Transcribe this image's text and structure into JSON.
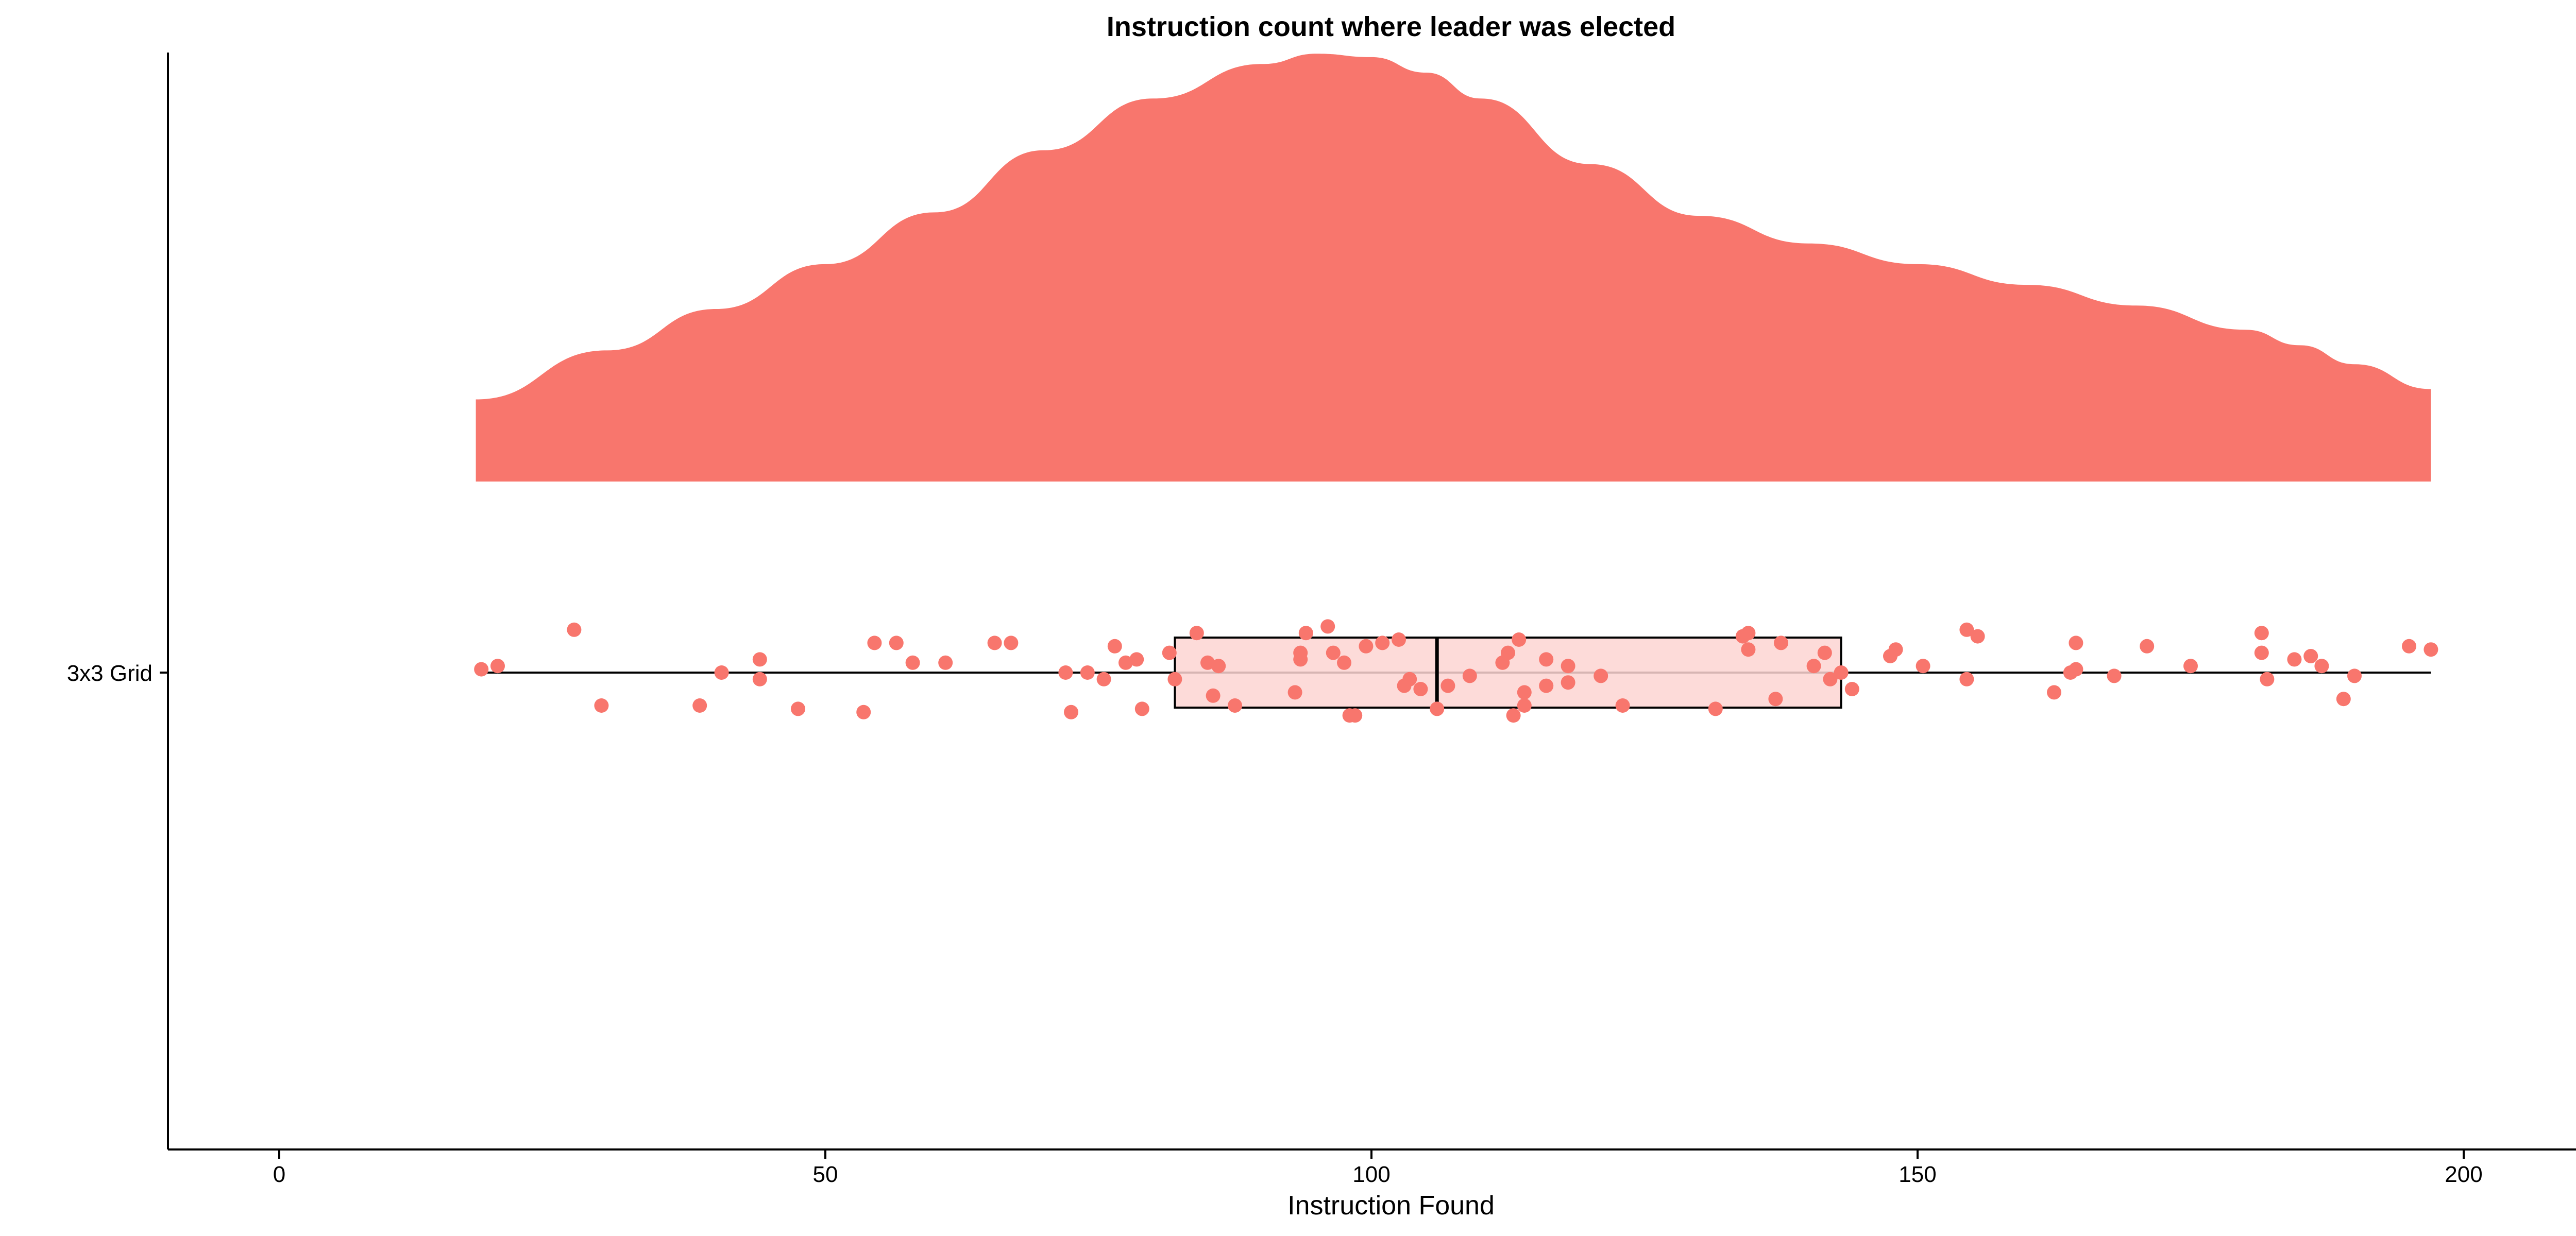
{
  "chart_data": {
    "type": "raincloud",
    "title": "Instruction count where leader was elected",
    "xlabel": "Instruction Found",
    "ylabel": "",
    "xlim": [
      -10,
      210
    ],
    "x_ticks": [
      0,
      50,
      100,
      150,
      200
    ],
    "category": "3x3 Grid",
    "colors": {
      "density": "#F8766D",
      "points": "#F8766D",
      "box_fill": "#FDD5D2",
      "lines": "#000000"
    },
    "density": {
      "x": [
        18,
        30,
        40,
        50,
        60,
        70,
        80,
        90,
        95,
        100,
        105,
        110,
        120,
        130,
        140,
        150,
        160,
        170,
        180,
        185,
        190,
        197
      ],
      "y": [
        0.238,
        0.38,
        0.5,
        0.63,
        0.78,
        0.96,
        1.11,
        1.21,
        1.24,
        1.23,
        1.185,
        1.11,
        0.92,
        0.77,
        0.69,
        0.63,
        0.57,
        0.51,
        0.44,
        0.395,
        0.34,
        0.268
      ]
    },
    "boxplot": {
      "min": 18,
      "q1": 82,
      "median": 106,
      "q3": 143,
      "max": 197
    },
    "points": [
      {
        "x": 18.5,
        "y": 0.01
      },
      {
        "x": 20,
        "y": 0.02
      },
      {
        "x": 27,
        "y": 0.13
      },
      {
        "x": 29.5,
        "y": -0.1
      },
      {
        "x": 38.5,
        "y": -0.1
      },
      {
        "x": 40.5,
        "y": 0.0
      },
      {
        "x": 44,
        "y": 0.04
      },
      {
        "x": 44,
        "y": -0.02
      },
      {
        "x": 47.5,
        "y": -0.11
      },
      {
        "x": 53.5,
        "y": -0.12
      },
      {
        "x": 54.5,
        "y": 0.09
      },
      {
        "x": 56.5,
        "y": 0.09
      },
      {
        "x": 58,
        "y": 0.03
      },
      {
        "x": 61,
        "y": 0.03
      },
      {
        "x": 65.5,
        "y": 0.09
      },
      {
        "x": 67,
        "y": 0.09
      },
      {
        "x": 72,
        "y": 0.0
      },
      {
        "x": 72.5,
        "y": -0.12
      },
      {
        "x": 74,
        "y": 0.0
      },
      {
        "x": 75.5,
        "y": -0.02
      },
      {
        "x": 76.5,
        "y": 0.08
      },
      {
        "x": 77.5,
        "y": 0.03
      },
      {
        "x": 78.5,
        "y": 0.04
      },
      {
        "x": 79,
        "y": -0.11
      },
      {
        "x": 81.5,
        "y": 0.06
      },
      {
        "x": 82,
        "y": -0.02
      },
      {
        "x": 84,
        "y": 0.12
      },
      {
        "x": 85,
        "y": 0.03
      },
      {
        "x": 85.5,
        "y": -0.07
      },
      {
        "x": 86,
        "y": 0.02
      },
      {
        "x": 87.5,
        "y": -0.1
      },
      {
        "x": 93,
        "y": -0.06
      },
      {
        "x": 93.5,
        "y": 0.06
      },
      {
        "x": 93.5,
        "y": 0.04
      },
      {
        "x": 94,
        "y": 0.12
      },
      {
        "x": 96,
        "y": 0.14
      },
      {
        "x": 96.5,
        "y": 0.06
      },
      {
        "x": 97.5,
        "y": 0.03
      },
      {
        "x": 98,
        "y": -0.13
      },
      {
        "x": 98.5,
        "y": -0.13
      },
      {
        "x": 99.5,
        "y": 0.08
      },
      {
        "x": 101,
        "y": 0.09
      },
      {
        "x": 102.5,
        "y": 0.1
      },
      {
        "x": 103,
        "y": -0.04
      },
      {
        "x": 103.5,
        "y": -0.02
      },
      {
        "x": 104.5,
        "y": -0.05
      },
      {
        "x": 106,
        "y": -0.11
      },
      {
        "x": 107,
        "y": -0.04
      },
      {
        "x": 109,
        "y": -0.01
      },
      {
        "x": 112,
        "y": 0.03
      },
      {
        "x": 112.5,
        "y": 0.06
      },
      {
        "x": 113,
        "y": -0.13
      },
      {
        "x": 113.5,
        "y": 0.1
      },
      {
        "x": 114,
        "y": -0.06
      },
      {
        "x": 114,
        "y": -0.1
      },
      {
        "x": 116,
        "y": -0.04
      },
      {
        "x": 116,
        "y": 0.04
      },
      {
        "x": 118,
        "y": 0.02
      },
      {
        "x": 118,
        "y": -0.03
      },
      {
        "x": 121,
        "y": -0.01
      },
      {
        "x": 123,
        "y": -0.1
      },
      {
        "x": 131.5,
        "y": -0.11
      },
      {
        "x": 134,
        "y": 0.11
      },
      {
        "x": 134.5,
        "y": 0.12
      },
      {
        "x": 134.5,
        "y": 0.07
      },
      {
        "x": 137,
        "y": -0.08
      },
      {
        "x": 137.5,
        "y": 0.09
      },
      {
        "x": 140.5,
        "y": 0.02
      },
      {
        "x": 141.5,
        "y": 0.06
      },
      {
        "x": 142,
        "y": -0.02
      },
      {
        "x": 143,
        "y": 0.0
      },
      {
        "x": 144,
        "y": -0.05
      },
      {
        "x": 147.5,
        "y": 0.05
      },
      {
        "x": 148,
        "y": 0.07
      },
      {
        "x": 150.5,
        "y": 0.02
      },
      {
        "x": 154.5,
        "y": -0.02
      },
      {
        "x": 154.5,
        "y": 0.13
      },
      {
        "x": 155.5,
        "y": 0.11
      },
      {
        "x": 162.5,
        "y": -0.06
      },
      {
        "x": 164,
        "y": 0.0
      },
      {
        "x": 164.5,
        "y": 0.01
      },
      {
        "x": 164.5,
        "y": 0.09
      },
      {
        "x": 168,
        "y": -0.01
      },
      {
        "x": 171,
        "y": 0.08
      },
      {
        "x": 175,
        "y": 0.02
      },
      {
        "x": 181.5,
        "y": 0.12
      },
      {
        "x": 181.5,
        "y": 0.06
      },
      {
        "x": 182,
        "y": -0.02
      },
      {
        "x": 184.5,
        "y": 0.04
      },
      {
        "x": 186,
        "y": 0.05
      },
      {
        "x": 187,
        "y": 0.02
      },
      {
        "x": 189,
        "y": -0.08
      },
      {
        "x": 190,
        "y": -0.01
      },
      {
        "x": 195,
        "y": 0.08
      },
      {
        "x": 197,
        "y": 0.07
      }
    ],
    "grid": false,
    "legend": "none"
  }
}
